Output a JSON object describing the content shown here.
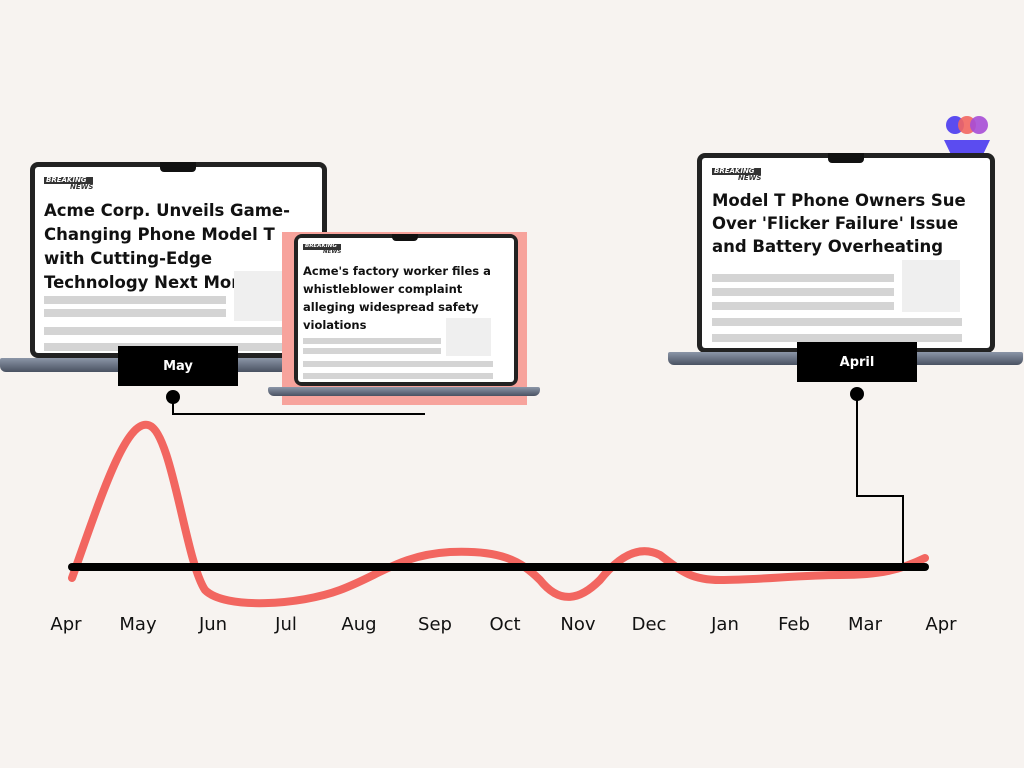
{
  "timeline": {
    "months": [
      "Apr",
      "May",
      "Jun",
      "Jul",
      "Aug",
      "Sep",
      "Oct",
      "Nov",
      "Dec",
      "Jan",
      "Feb",
      "Mar",
      "Apr"
    ]
  },
  "cards": [
    {
      "badge_top": "BREAKING",
      "badge_bottom": "NEWS",
      "headline": "Acme Corp. Unveils Game-Changing Phone Model T with Cutting-Edge Technology Next Month"
    },
    {
      "badge_top": "BREAKING",
      "badge_bottom": "NEWS",
      "headline": "Acme's factory worker files a whistleblower complaint alleging widespread safety violations"
    },
    {
      "badge_top": "BREAKING",
      "badge_bottom": "NEWS",
      "headline": "Model T Phone Owners Sue Over 'Flicker Failure' Issue and Battery Overheating"
    }
  ],
  "markers": [
    {
      "label": "May"
    },
    {
      "label": "April"
    }
  ]
}
